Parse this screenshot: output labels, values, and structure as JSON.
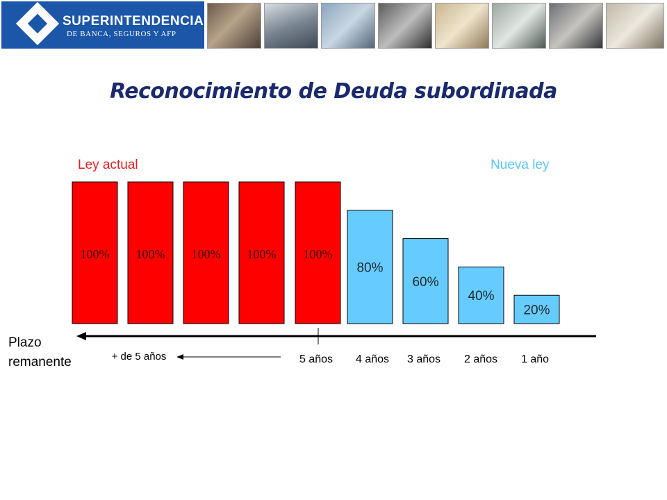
{
  "header": {
    "logo_name": "SUPERINTENDENCIA",
    "logo_sub": "DE BANCA, SEGUROS Y AFP",
    "photos": [
      "photo-1",
      "photo-2",
      "photo-3",
      "photo-4",
      "photo-5",
      "photo-6",
      "photo-7",
      "photo-8"
    ]
  },
  "title": "Reconocimiento de Deuda subordinada",
  "legend": {
    "left": "Ley actual",
    "right": "Nueva ley"
  },
  "axis": {
    "title_line1": "Plazo",
    "title_line2": "remanente",
    "range_label": "+ de 5 años"
  },
  "colors": {
    "legacy": "#ff0000",
    "new": "#66ccff",
    "title": "#1a2a6c",
    "brand": "#1b56a8"
  },
  "chart_data": {
    "type": "bar",
    "title": "Reconocimiento de Deuda subordinada",
    "xlabel": "Plazo remanente",
    "ylabel": "",
    "ylim": [
      0,
      100
    ],
    "values": [
      100,
      100,
      100,
      100,
      100,
      80,
      60,
      40,
      20
    ],
    "data_labels": [
      "100%",
      "100%",
      "100%",
      "100%",
      "100%",
      "80%",
      "60%",
      "40%",
      "20%"
    ],
    "series_group": [
      "Ley actual",
      "Ley actual",
      "Ley actual",
      "Ley actual",
      "Ley actual",
      "Nueva ley",
      "Nueva ley",
      "Nueva ley",
      "Nueva ley"
    ],
    "tick_labels": [
      "+ de 5 años",
      "5 años",
      "4 años",
      "3 años",
      "2 años",
      "1 año"
    ]
  }
}
